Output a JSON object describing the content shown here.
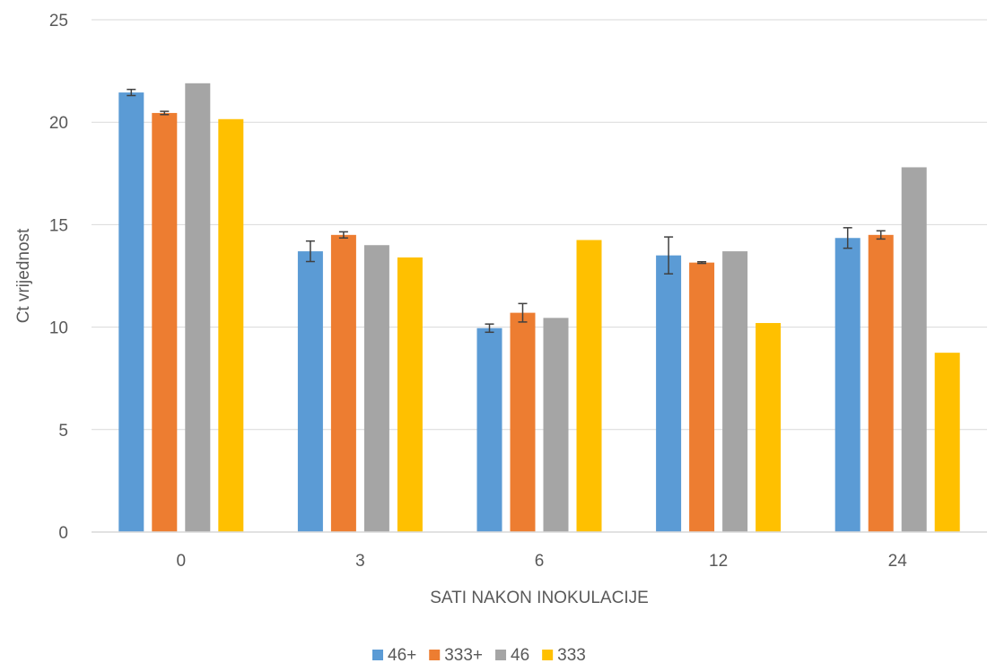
{
  "chart_data": {
    "type": "bar",
    "title": "",
    "xlabel": "SATI NAKON INOKULACIJE",
    "ylabel": "Ct vrijednost",
    "ylim": [
      0,
      25
    ],
    "yticks": [
      0,
      5,
      10,
      15,
      20,
      25
    ],
    "grid": true,
    "legend_position": "bottom",
    "categories": [
      "0",
      "3",
      "6",
      "12",
      "24"
    ],
    "series": [
      {
        "name": "46+",
        "color": "#5B9BD5",
        "values": [
          21.45,
          13.7,
          9.95,
          13.5,
          14.35
        ],
        "errors": [
          0.15,
          0.5,
          0.2,
          0.9,
          0.5
        ]
      },
      {
        "name": "333+",
        "color": "#ED7D31",
        "values": [
          20.45,
          14.5,
          10.7,
          13.15,
          14.5
        ],
        "errors": [
          0.08,
          0.15,
          0.45,
          0.04,
          0.2
        ]
      },
      {
        "name": "46",
        "color": "#A5A5A5",
        "values": [
          21.9,
          14.0,
          10.45,
          13.7,
          17.8
        ],
        "errors": null
      },
      {
        "name": "333",
        "color": "#FFC000",
        "values": [
          20.15,
          13.4,
          14.25,
          10.2,
          8.75
        ],
        "errors": null
      }
    ]
  }
}
